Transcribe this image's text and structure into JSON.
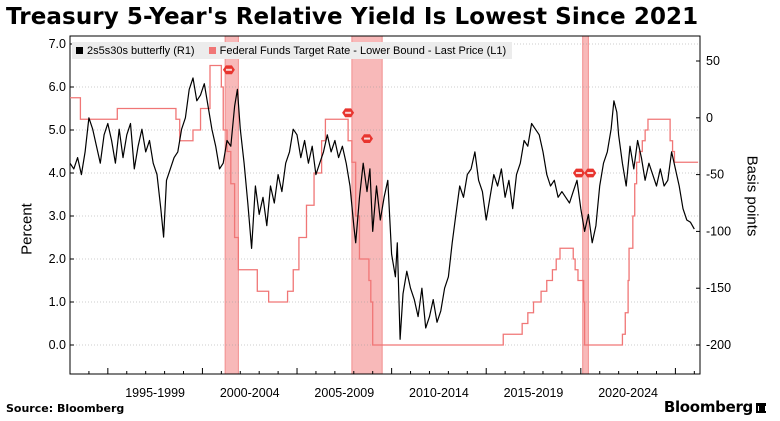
{
  "title": "Treasury 5-Year's Relative Yield Is Lowest Since 2021",
  "source": "Source: Bloomberg",
  "brand": "Bloomberg",
  "colors": {
    "butterfly": "#000000",
    "fed_funds": "#f07676",
    "recession_band": "#f8b9b9",
    "recession_band_edge": "#f28d8d",
    "marker": "#e8352f",
    "legend_bg": "#ececec",
    "grid": "#9a9a9a"
  },
  "chart_data": {
    "type": "line",
    "title": "Treasury 5-Year's Relative Yield Is Lowest Since 2021",
    "xlabel": "",
    "ylabel_left": "Percent",
    "ylabel_right": "Basis points",
    "x_tick_labels": [
      "1995-1999",
      "2000-2004",
      "2005-2009",
      "2010-2014",
      "2015-2019",
      "2020-2024"
    ],
    "x_range": [
      1993.0,
      2026.3
    ],
    "y_left_ticks": [
      "7.0",
      "6.0",
      "5.0",
      "4.0",
      "3.0",
      "2.0",
      "1.0",
      "0.0"
    ],
    "y_left_range": [
      0.0,
      7.0
    ],
    "y_right_ticks": [
      "50",
      "0",
      "-50",
      "-100",
      "-150",
      "-200"
    ],
    "y_right_range": [
      -200,
      50
    ],
    "grid": "dotted horizontal",
    "legend_position": "top-left",
    "legend": [
      "2s5s30s butterfly (R1)",
      "Federal Funds Target Rate - Lower Bound - Last Price (L1)"
    ],
    "recession_bands": [
      [
        2001.2,
        2001.9
      ],
      [
        2007.9,
        2009.5
      ],
      [
        2020.1,
        2020.4
      ]
    ],
    "markers": [
      {
        "x": 2001.4,
        "y": 6.4
      },
      {
        "x": 2007.7,
        "y": 5.4
      },
      {
        "x": 2008.7,
        "y": 4.8
      },
      {
        "x": 2019.9,
        "y": 4.0
      },
      {
        "x": 2020.5,
        "y": 4.0
      }
    ],
    "series": [
      {
        "name": "Federal Funds Target Rate - Lower Bound - Last Price (L1)",
        "axis": "left",
        "step": true,
        "points": [
          [
            1993.0,
            5.75
          ],
          [
            1993.4,
            5.75
          ],
          [
            1993.55,
            5.25
          ],
          [
            1994.3,
            5.25
          ],
          [
            1994.7,
            5.25
          ],
          [
            1995.5,
            5.5
          ],
          [
            1996.2,
            5.5
          ],
          [
            1997.2,
            5.5
          ],
          [
            1998.6,
            5.25
          ],
          [
            1998.8,
            4.75
          ],
          [
            1999.5,
            5.0
          ],
          [
            1999.9,
            5.5
          ],
          [
            2000.4,
            6.5
          ],
          [
            2000.8,
            6.5
          ],
          [
            2001.0,
            6.0
          ],
          [
            2001.1,
            5.0
          ],
          [
            2001.3,
            4.5
          ],
          [
            2001.5,
            3.75
          ],
          [
            2001.7,
            2.5
          ],
          [
            2001.9,
            1.75
          ],
          [
            2002.9,
            1.25
          ],
          [
            2003.5,
            1.0
          ],
          [
            2004.5,
            1.25
          ],
          [
            2004.8,
            1.75
          ],
          [
            2005.1,
            2.5
          ],
          [
            2005.5,
            3.25
          ],
          [
            2005.9,
            4.0
          ],
          [
            2006.3,
            4.75
          ],
          [
            2006.5,
            5.25
          ],
          [
            2007.6,
            5.25
          ],
          [
            2007.7,
            4.75
          ],
          [
            2007.9,
            4.25
          ],
          [
            2008.1,
            3.0
          ],
          [
            2008.3,
            2.0
          ],
          [
            2008.8,
            1.5
          ],
          [
            2008.9,
            1.0
          ],
          [
            2009.0,
            0.0
          ],
          [
            2015.9,
            0.25
          ],
          [
            2016.9,
            0.5
          ],
          [
            2017.2,
            0.75
          ],
          [
            2017.5,
            1.0
          ],
          [
            2017.9,
            1.25
          ],
          [
            2018.2,
            1.5
          ],
          [
            2018.5,
            1.75
          ],
          [
            2018.7,
            2.0
          ],
          [
            2018.9,
            2.25
          ],
          [
            2019.5,
            2.25
          ],
          [
            2019.6,
            2.0
          ],
          [
            2019.7,
            1.75
          ],
          [
            2019.85,
            1.5
          ],
          [
            2020.15,
            1.0
          ],
          [
            2020.2,
            0.0
          ],
          [
            2022.2,
            0.25
          ],
          [
            2022.35,
            0.75
          ],
          [
            2022.5,
            1.5
          ],
          [
            2022.55,
            2.25
          ],
          [
            2022.75,
            3.0
          ],
          [
            2022.85,
            3.75
          ],
          [
            2022.95,
            4.25
          ],
          [
            2023.1,
            4.5
          ],
          [
            2023.25,
            4.75
          ],
          [
            2023.4,
            5.0
          ],
          [
            2023.55,
            5.25
          ],
          [
            2024.7,
            5.25
          ],
          [
            2024.72,
            4.75
          ],
          [
            2024.85,
            4.5
          ],
          [
            2024.95,
            4.25
          ],
          [
            2025.9,
            4.25
          ],
          [
            2026.2,
            4.25
          ]
        ]
      },
      {
        "name": "2s5s30s butterfly (R1)",
        "axis": "right",
        "points": [
          [
            1993.0,
            -40
          ],
          [
            1993.2,
            -45
          ],
          [
            1993.4,
            -35
          ],
          [
            1993.6,
            -50
          ],
          [
            1993.8,
            -30
          ],
          [
            1994.0,
            0
          ],
          [
            1994.2,
            -10
          ],
          [
            1994.4,
            -25
          ],
          [
            1994.6,
            -40
          ],
          [
            1994.8,
            -15
          ],
          [
            1995.0,
            -5
          ],
          [
            1995.2,
            -20
          ],
          [
            1995.4,
            -40
          ],
          [
            1995.6,
            -10
          ],
          [
            1995.8,
            -35
          ],
          [
            1996.0,
            -15
          ],
          [
            1996.2,
            -5
          ],
          [
            1996.4,
            -45
          ],
          [
            1996.6,
            -25
          ],
          [
            1996.8,
            -10
          ],
          [
            1997.0,
            -30
          ],
          [
            1997.2,
            -20
          ],
          [
            1997.4,
            -40
          ],
          [
            1997.6,
            -50
          ],
          [
            1997.8,
            -80
          ],
          [
            1997.95,
            -105
          ],
          [
            1998.1,
            -55
          ],
          [
            1998.3,
            -45
          ],
          [
            1998.5,
            -35
          ],
          [
            1998.7,
            -30
          ],
          [
            1998.9,
            -10
          ],
          [
            1999.1,
            0
          ],
          [
            1999.3,
            25
          ],
          [
            1999.5,
            35
          ],
          [
            1999.7,
            15
          ],
          [
            1999.9,
            20
          ],
          [
            2000.1,
            30
          ],
          [
            2000.3,
            10
          ],
          [
            2000.5,
            -10
          ],
          [
            2000.7,
            -25
          ],
          [
            2000.9,
            -45
          ],
          [
            2001.1,
            -40
          ],
          [
            2001.3,
            -20
          ],
          [
            2001.5,
            -25
          ],
          [
            2001.7,
            10
          ],
          [
            2001.85,
            25
          ],
          [
            2002.0,
            -10
          ],
          [
            2002.2,
            -40
          ],
          [
            2002.4,
            -75
          ],
          [
            2002.6,
            -115
          ],
          [
            2002.8,
            -60
          ],
          [
            2003.0,
            -85
          ],
          [
            2003.2,
            -70
          ],
          [
            2003.4,
            -95
          ],
          [
            2003.6,
            -60
          ],
          [
            2003.8,
            -75
          ],
          [
            2004.0,
            -50
          ],
          [
            2004.2,
            -65
          ],
          [
            2004.4,
            -40
          ],
          [
            2004.6,
            -30
          ],
          [
            2004.8,
            -10
          ],
          [
            2005.0,
            -15
          ],
          [
            2005.2,
            -35
          ],
          [
            2005.4,
            -20
          ],
          [
            2005.6,
            -40
          ],
          [
            2005.8,
            -25
          ],
          [
            2006.0,
            -50
          ],
          [
            2006.2,
            -40
          ],
          [
            2006.4,
            -30
          ],
          [
            2006.6,
            -15
          ],
          [
            2006.8,
            -30
          ],
          [
            2007.0,
            -20
          ],
          [
            2007.2,
            -35
          ],
          [
            2007.4,
            -25
          ],
          [
            2007.6,
            -40
          ],
          [
            2007.8,
            -60
          ],
          [
            2008.0,
            -95
          ],
          [
            2008.1,
            -110
          ],
          [
            2008.3,
            -70
          ],
          [
            2008.5,
            -40
          ],
          [
            2008.7,
            -65
          ],
          [
            2008.85,
            -45
          ],
          [
            2009.0,
            -100
          ],
          [
            2009.2,
            -60
          ],
          [
            2009.4,
            -90
          ],
          [
            2009.6,
            -70
          ],
          [
            2009.8,
            -55
          ],
          [
            2010.0,
            -120
          ],
          [
            2010.2,
            -140
          ],
          [
            2010.3,
            -110
          ],
          [
            2010.45,
            -195
          ],
          [
            2010.6,
            -155
          ],
          [
            2010.8,
            -135
          ],
          [
            2011.0,
            -150
          ],
          [
            2011.2,
            -160
          ],
          [
            2011.4,
            -175
          ],
          [
            2011.6,
            -150
          ],
          [
            2011.8,
            -185
          ],
          [
            2012.0,
            -175
          ],
          [
            2012.2,
            -160
          ],
          [
            2012.4,
            -180
          ],
          [
            2012.6,
            -170
          ],
          [
            2012.8,
            -150
          ],
          [
            2013.0,
            -140
          ],
          [
            2013.2,
            -110
          ],
          [
            2013.4,
            -85
          ],
          [
            2013.6,
            -60
          ],
          [
            2013.8,
            -70
          ],
          [
            2014.0,
            -50
          ],
          [
            2014.2,
            -45
          ],
          [
            2014.4,
            -30
          ],
          [
            2014.6,
            -55
          ],
          [
            2014.8,
            -65
          ],
          [
            2015.0,
            -90
          ],
          [
            2015.2,
            -70
          ],
          [
            2015.4,
            -50
          ],
          [
            2015.6,
            -60
          ],
          [
            2015.8,
            -45
          ],
          [
            2016.0,
            -70
          ],
          [
            2016.2,
            -55
          ],
          [
            2016.4,
            -80
          ],
          [
            2016.6,
            -50
          ],
          [
            2016.8,
            -40
          ],
          [
            2017.0,
            -20
          ],
          [
            2017.2,
            -25
          ],
          [
            2017.4,
            -5
          ],
          [
            2017.6,
            -10
          ],
          [
            2017.8,
            -15
          ],
          [
            2018.0,
            -30
          ],
          [
            2018.2,
            -50
          ],
          [
            2018.4,
            -60
          ],
          [
            2018.6,
            -55
          ],
          [
            2018.8,
            -70
          ],
          [
            2019.0,
            -65
          ],
          [
            2019.2,
            -70
          ],
          [
            2019.4,
            -75
          ],
          [
            2019.6,
            -65
          ],
          [
            2019.8,
            -55
          ],
          [
            2020.0,
            -80
          ],
          [
            2020.2,
            -100
          ],
          [
            2020.4,
            -85
          ],
          [
            2020.6,
            -110
          ],
          [
            2020.8,
            -95
          ],
          [
            2021.0,
            -60
          ],
          [
            2021.2,
            -40
          ],
          [
            2021.4,
            -30
          ],
          [
            2021.6,
            -10
          ],
          [
            2021.75,
            15
          ],
          [
            2021.9,
            5
          ],
          [
            2022.0,
            -15
          ],
          [
            2022.2,
            -40
          ],
          [
            2022.4,
            -60
          ],
          [
            2022.6,
            -25
          ],
          [
            2022.8,
            -45
          ],
          [
            2023.0,
            -20
          ],
          [
            2023.2,
            -35
          ],
          [
            2023.4,
            -55
          ],
          [
            2023.6,
            -40
          ],
          [
            2023.8,
            -50
          ],
          [
            2024.0,
            -60
          ],
          [
            2024.2,
            -45
          ],
          [
            2024.4,
            -60
          ],
          [
            2024.6,
            -55
          ],
          [
            2024.8,
            -30
          ],
          [
            2025.0,
            -45
          ],
          [
            2025.2,
            -60
          ],
          [
            2025.4,
            -80
          ],
          [
            2025.6,
            -90
          ],
          [
            2025.8,
            -92
          ],
          [
            2026.0,
            -98
          ]
        ]
      }
    ]
  }
}
